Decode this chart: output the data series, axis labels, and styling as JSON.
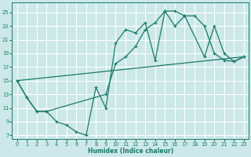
{
  "bg_color": "#cce8e8",
  "grid_color": "#ffffff",
  "line_color": "#1a7a6a",
  "xlabel": "Humidex (Indice chaleur)",
  "xlim": [
    -0.5,
    23.5
  ],
  "ylim": [
    6.5,
    26.5
  ],
  "yticks": [
    7,
    9,
    11,
    13,
    15,
    17,
    19,
    21,
    23,
    25
  ],
  "xticks": [
    0,
    1,
    2,
    3,
    4,
    5,
    6,
    7,
    8,
    9,
    10,
    11,
    12,
    13,
    14,
    15,
    16,
    17,
    18,
    19,
    20,
    21,
    22,
    23
  ],
  "curve1_x": [
    0,
    1,
    2,
    3,
    4,
    5,
    6,
    7,
    8,
    9,
    10,
    11,
    12,
    13,
    14,
    15,
    16,
    17,
    18,
    19,
    20,
    21,
    22,
    23
  ],
  "curve1_y": [
    15,
    12.5,
    10.5,
    10.5,
    9.0,
    8.5,
    7.5,
    7.0,
    14.0,
    11.0,
    20.5,
    22.5,
    22.0,
    23.5,
    18.0,
    25.2,
    25.2,
    24.5,
    24.5,
    23.0,
    19.0,
    18.0,
    17.8,
    18.5
  ],
  "curve2_x": [
    0,
    1,
    2,
    3,
    9,
    10,
    11,
    12,
    13,
    14,
    15,
    16,
    17,
    19,
    20,
    21,
    22,
    23
  ],
  "curve2_y": [
    15,
    12.5,
    10.5,
    10.5,
    13.0,
    17.5,
    18.5,
    20.0,
    22.5,
    23.5,
    25.2,
    23.0,
    24.5,
    18.5,
    23.0,
    19.0,
    17.8,
    18.5
  ],
  "line_x": [
    0,
    23
  ],
  "line_y": [
    15,
    18.5
  ]
}
